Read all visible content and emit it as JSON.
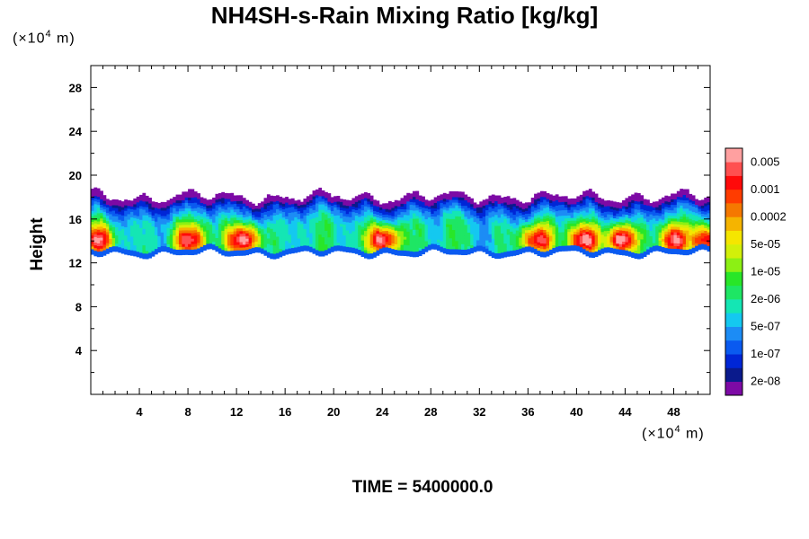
{
  "chart_data": {
    "type": "heatmap",
    "title": "NH4SH-s-Rain Mixing Ratio [kg/kg]",
    "ylabel": "Height",
    "xlabel": "",
    "y_unit_label": "(×10",
    "x_unit_label": "(×10",
    "unit_exponent": "4",
    "unit_suffix": " m)",
    "xlim": [
      0,
      51
    ],
    "ylim": [
      0,
      30
    ],
    "x_ticks": [
      4,
      8,
      12,
      16,
      20,
      24,
      28,
      32,
      36,
      40,
      44,
      48
    ],
    "y_ticks": [
      4,
      8,
      12,
      16,
      20,
      24,
      28
    ],
    "time_label": "TIME = 5400000.0",
    "colorbar": {
      "colors": [
        "#7d0aa5",
        "#0a1a8c",
        "#0026d6",
        "#0a5af0",
        "#1c8cf5",
        "#14c8f0",
        "#14e6b4",
        "#1ee664",
        "#28e628",
        "#8cf014",
        "#d2f00a",
        "#f5e600",
        "#f5b400",
        "#f57800",
        "#ff3c00",
        "#ff0a0a",
        "#ff5050",
        "#ffa0a0"
      ],
      "labels": [
        "2e-08",
        "1e-07",
        "5e-07",
        "2e-06",
        "1e-05",
        "5e-05",
        "0.0002",
        "0.001",
        "0.005"
      ]
    },
    "layer": {
      "bottom_height_approx": 13,
      "top_height_approx": 19,
      "max_band_height_approx": 14,
      "hotspot_x": [
        0.5,
        8,
        12.5,
        24,
        36.5,
        40.5,
        43.5,
        48,
        50.5
      ],
      "hotspot_intensity": [
        0.75,
        0.75,
        0.95,
        0.95,
        0.8,
        0.85,
        0.97,
        0.8,
        0.8
      ]
    }
  }
}
